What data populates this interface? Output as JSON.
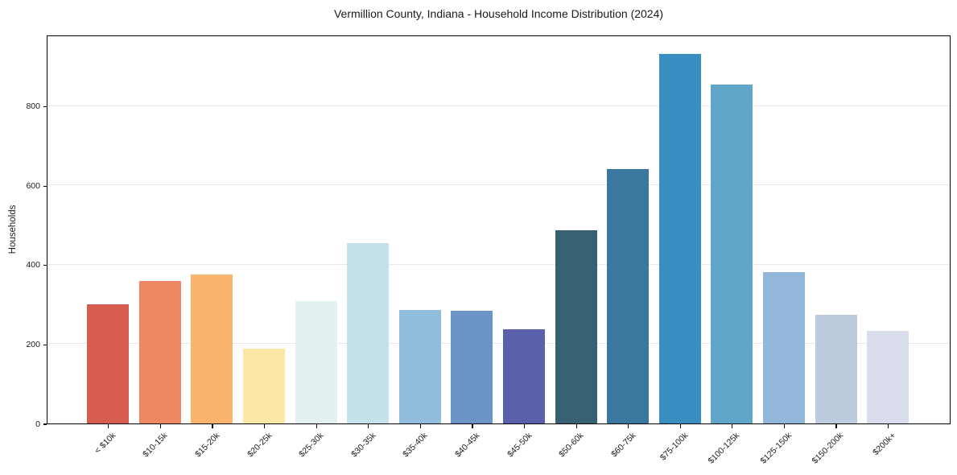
{
  "chart_data": {
    "type": "bar",
    "title": "Vermillion County, Indiana - Household Income Distribution (2024)",
    "xlabel": "",
    "ylabel": "Households",
    "categories": [
      "< $10k",
      "$10-15k",
      "$15-20k",
      "$20-25k",
      "$25-30k",
      "$30-35k",
      "$35-40k",
      "$40-45k",
      "$45-50k",
      "$50-60k",
      "$60-75k",
      "$75-100k",
      "$100-125k",
      "$125-150k",
      "$150-200k",
      "$200k+"
    ],
    "values": [
      300,
      359,
      375,
      189,
      308,
      454,
      286,
      284,
      238,
      487,
      641,
      931,
      854,
      381,
      274,
      233
    ],
    "bar_colors": [
      "#d65c51",
      "#f08764",
      "#f9b36c",
      "#fce8a4",
      "#e4f1f2",
      "#c5e1eb",
      "#90bedc",
      "#6b94c6",
      "#5a60ab",
      "#386173",
      "#3a789f",
      "#388ec1",
      "#60a6c9",
      "#93b7da",
      "#bdcbdf",
      "#d9dcea"
    ],
    "yticks": [
      0,
      200,
      400,
      600,
      800
    ],
    "ylim": [
      0,
      980
    ],
    "grid": "horizontal",
    "gridline_color": "#e8e8e8",
    "axis_color": "#000000",
    "background_color": "#ffffff",
    "legend": "none"
  }
}
